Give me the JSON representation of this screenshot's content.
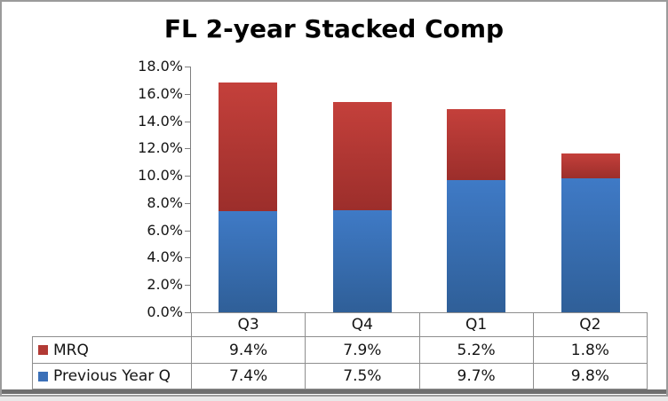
{
  "window": {
    "background": "#ffffff",
    "frame_border_color": "#9b9b9b",
    "bottom_edge_color": "#6e6e6e"
  },
  "chart_data": {
    "type": "bar",
    "subtype": "stacked-column",
    "title": "FL 2-year Stacked Comp",
    "categories": [
      "Q3",
      "Q4",
      "Q1",
      "Q2"
    ],
    "series": [
      {
        "name": "MRQ",
        "stack_order": "top",
        "values": [
          9.4,
          7.9,
          5.2,
          1.8
        ],
        "labels": [
          "9.4%",
          "7.9%",
          "5.2%",
          "1.8%"
        ],
        "swatch_color": "#b23a35",
        "gradient_top": "#c4403b",
        "gradient_bottom": "#9c2e2b"
      },
      {
        "name": "Previous Year Q",
        "stack_order": "bottom",
        "values": [
          7.4,
          7.5,
          9.7,
          9.8
        ],
        "labels": [
          "7.4%",
          "7.5%",
          "9.7%",
          "9.8%"
        ],
        "swatch_color": "#3b70b8",
        "gradient_top": "#3f7ac6",
        "gradient_bottom": "#2f5f98"
      }
    ],
    "stack_totals": [
      16.8,
      15.4,
      14.9,
      11.6
    ],
    "y_axis": {
      "min": 0,
      "max": 18,
      "step": 2,
      "tick_labels_top_to_bottom": [
        "18.0%",
        "16.0%",
        "14.0%",
        "12.0%",
        "10.0%",
        "8.0%",
        "6.0%",
        "4.0%",
        "2.0%",
        "0.0%"
      ]
    },
    "gridlines": false,
    "legend_position": "data-table-left",
    "axis_color": "#7f7f7f",
    "table_border_color": "#8e8e8e",
    "text_color": "#141414"
  }
}
